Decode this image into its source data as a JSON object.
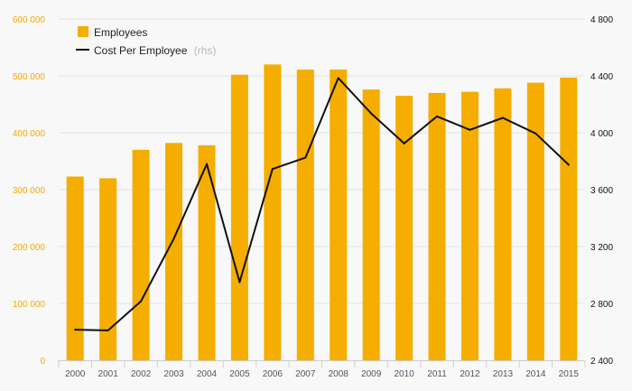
{
  "chart_data": {
    "type": "bar+line",
    "categories": [
      "2000",
      "2001",
      "2002",
      "2003",
      "2004",
      "2005",
      "2006",
      "2007",
      "2008",
      "2009",
      "2010",
      "2011",
      "2012",
      "2013",
      "2014",
      "2015"
    ],
    "series": [
      {
        "name": "Employees",
        "kind": "bar",
        "axis": "left",
        "values": [
          323000,
          320000,
          370000,
          382000,
          378000,
          502000,
          520000,
          511000,
          511000,
          476000,
          465000,
          470000,
          472000,
          478000,
          488000,
          497000
        ]
      },
      {
        "name": "Cost Per Employee",
        "kind": "line",
        "axis": "right",
        "values": [
          2615,
          2610,
          2815,
          3255,
          3780,
          2950,
          3745,
          3825,
          4385,
          4135,
          3925,
          4115,
          4020,
          4105,
          3995,
          3775
        ]
      }
    ],
    "legend": {
      "employees_label": "Employees",
      "cost_label": "Cost Per Employee",
      "cost_note": "(rhs)",
      "position": "top-left"
    },
    "left_axis": {
      "ylim": [
        0,
        600000
      ],
      "tick_values": [
        0,
        100000,
        200000,
        300000,
        400000,
        500000,
        600000
      ],
      "tick_labels": [
        "0",
        "100 000",
        "200 000",
        "300 000",
        "400 000",
        "500 000",
        "600 000"
      ]
    },
    "right_axis": {
      "ylim": [
        2400,
        4800
      ],
      "tick_values": [
        2400,
        2800,
        3200,
        3600,
        4000,
        4400,
        4800
      ],
      "tick_labels": [
        "2 400",
        "2 800",
        "3 200",
        "3 600",
        "4 000",
        "4 400",
        "4 800"
      ]
    },
    "grid": true
  },
  "colors": {
    "bar": "#f5ad00",
    "line": "#111111",
    "grid": "#e2e2e2",
    "background": "#f8f8f8"
  }
}
